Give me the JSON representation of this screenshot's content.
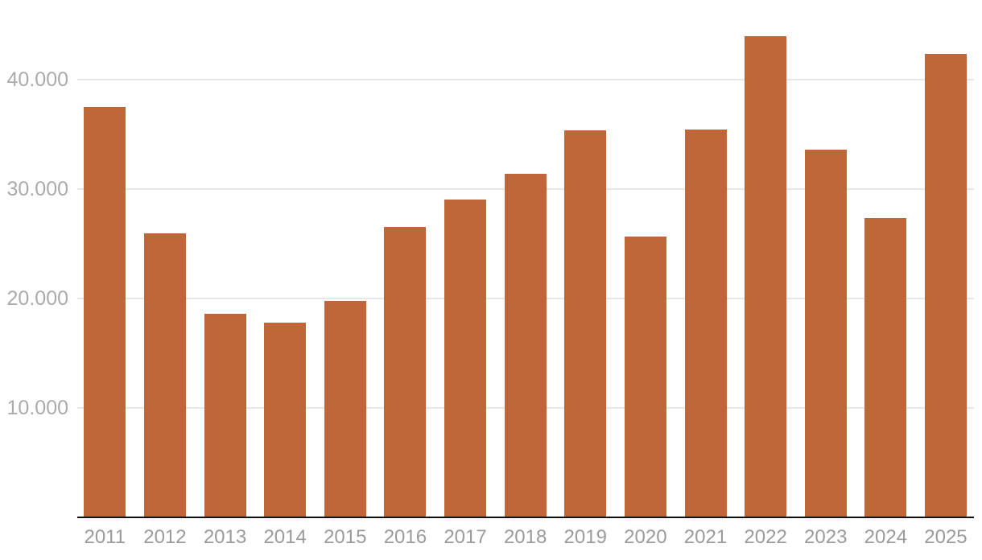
{
  "chart_data": {
    "type": "bar",
    "title": "",
    "xlabel": "",
    "ylabel": "",
    "categories": [
      "2011",
      "2012",
      "2013",
      "2014",
      "2015",
      "2016",
      "2017",
      "2018",
      "2019",
      "2020",
      "2021",
      "2022",
      "2023",
      "2024",
      "2025"
    ],
    "values": [
      37500,
      26000,
      18600,
      17800,
      19800,
      26600,
      29100,
      31400,
      35400,
      25700,
      35500,
      44000,
      33600,
      27400,
      42400
    ],
    "series_name": "",
    "ylim": [
      0,
      45000
    ],
    "yticks": [
      {
        "value": 10000,
        "label": "10.000"
      },
      {
        "value": 20000,
        "label": "20.000"
      },
      {
        "value": 30000,
        "label": "30.000"
      },
      {
        "value": 40000,
        "label": "40.000"
      }
    ],
    "grid": true,
    "legend_position": "none",
    "colors": {
      "bar": "#bf6739",
      "gridline": "#e8e8e8",
      "axis_line": "#111111",
      "y_tick_label": "#ababab",
      "x_tick_label": "#9b9b9b",
      "background": "#ffffff"
    }
  }
}
